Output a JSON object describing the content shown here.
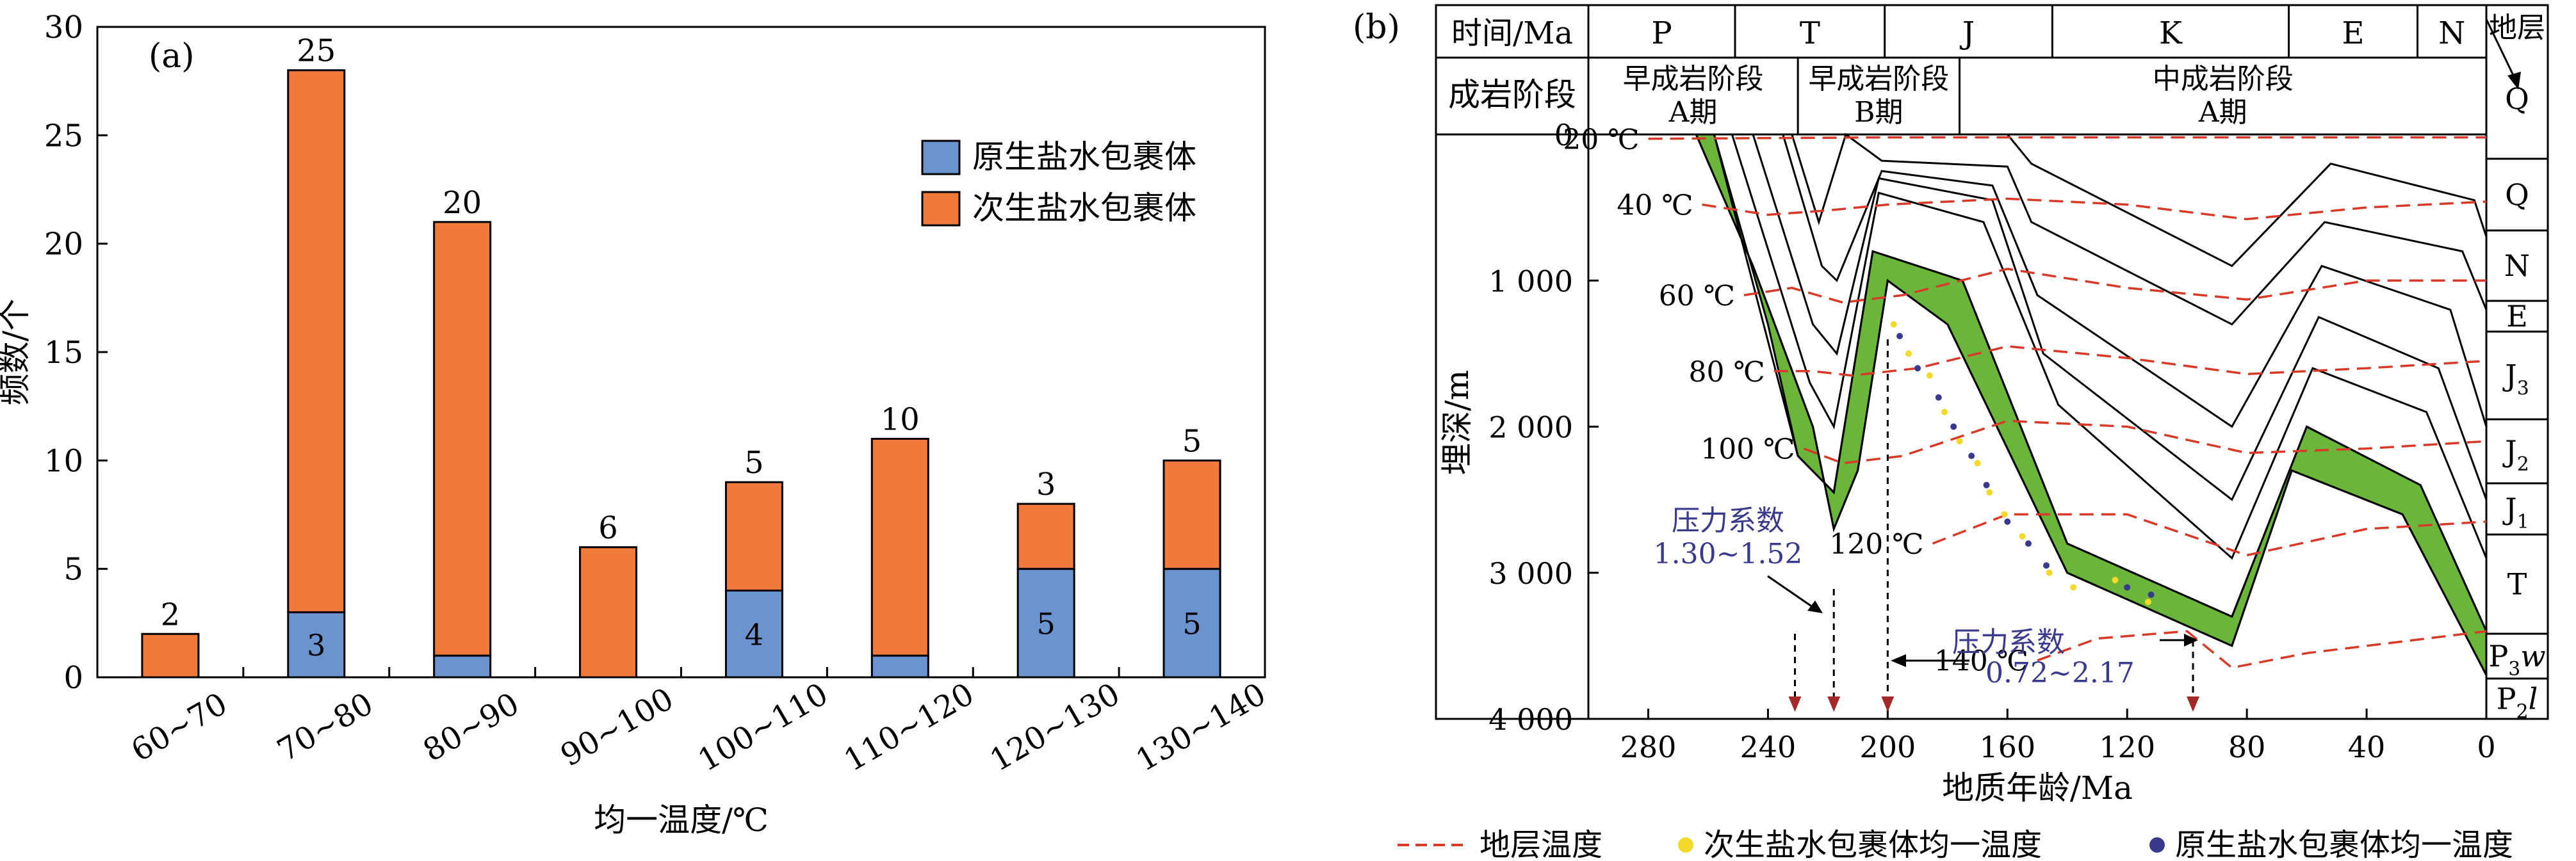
{
  "chart_data": [
    {
      "panel": "(a)",
      "type": "bar",
      "stacked": true,
      "categories": [
        "60~70",
        "70~80",
        "80~90",
        "90~100",
        "100~110",
        "110~120",
        "120~130",
        "130~140"
      ],
      "series": [
        {
          "name": "原生盐水包裹体",
          "color": "#6b93cf",
          "values": [
            0,
            3,
            1,
            0,
            4,
            1,
            5,
            5
          ]
        },
        {
          "name": "次生盐水包裹体",
          "color": "#ef7a3b",
          "values": [
            2,
            25,
            20,
            6,
            5,
            10,
            3,
            5
          ]
        }
      ],
      "segment_labels": [
        {
          "category_index": 1,
          "series_index": 0,
          "text": "3"
        },
        {
          "category_index": 4,
          "series_index": 0,
          "text": "4"
        },
        {
          "category_index": 6,
          "series_index": 0,
          "text": "5"
        },
        {
          "category_index": 7,
          "series_index": 0,
          "text": "5"
        }
      ],
      "top_labels": [
        "2",
        "25",
        "20",
        "6",
        "5",
        "10",
        "3",
        "5"
      ],
      "xlabel": "均一温度/℃",
      "ylabel": "频数/个",
      "ylim": [
        0,
        30
      ],
      "yticks": [
        0,
        5,
        10,
        15,
        20,
        25,
        30
      ],
      "legend_position": "right"
    },
    {
      "panel": "(b)",
      "type": "line",
      "title": "",
      "xlabel": "地质年龄/Ma",
      "ylabel": "埋深/m",
      "xlim": [
        300,
        0
      ],
      "ylim": [
        0,
        4000
      ],
      "xticks": [
        280,
        240,
        200,
        160,
        120,
        80,
        40,
        0
      ],
      "yticks": [
        0,
        1000,
        2000,
        3000,
        4000
      ],
      "ytick_labels": [
        "0",
        "1 000",
        "2 000",
        "3 000",
        "4 000"
      ],
      "header": {
        "time_label": "时间/Ma",
        "periods": [
          "P",
          "T",
          "J",
          "K",
          "E",
          "N"
        ],
        "stage_label": "成岩阶段",
        "stages": [
          {
            "name": "早成岩阶段",
            "sub": "A期"
          },
          {
            "name": "早成岩阶段",
            "sub": "B期"
          },
          {
            "name": "中成岩阶段",
            "sub": "A期"
          }
        ],
        "strata_label": "地层",
        "strata": [
          "Q",
          "N",
          "E",
          "J3",
          "J2",
          "J1",
          "T",
          "P3w",
          "P2l"
        ]
      },
      "burial_curves": [
        [
          [
            264,
            0
          ],
          [
            245,
            900
          ],
          [
            225,
            2000
          ],
          [
            218,
            2700
          ],
          [
            210,
            2300
          ],
          [
            200,
            1000
          ],
          [
            180,
            1300
          ],
          [
            140,
            3000
          ],
          [
            85,
            3500
          ],
          [
            65,
            2300
          ],
          [
            28,
            2600
          ],
          [
            0,
            3700
          ]
        ],
        [
          [
            258,
            0
          ],
          [
            230,
            2200
          ],
          [
            218,
            2450
          ],
          [
            205,
            800
          ],
          [
            175,
            1000
          ],
          [
            140,
            2800
          ],
          [
            85,
            3300
          ],
          [
            60,
            2000
          ],
          [
            22,
            2400
          ],
          [
            0,
            3400
          ]
        ],
        [
          [
            252,
            0
          ],
          [
            226,
            1700
          ],
          [
            218,
            2000
          ],
          [
            203,
            400
          ],
          [
            168,
            600
          ],
          [
            143,
            1850
          ],
          [
            85,
            2900
          ],
          [
            58,
            1600
          ],
          [
            20,
            1900
          ],
          [
            0,
            2900
          ]
        ],
        [
          [
            245,
            0
          ],
          [
            225,
            1300
          ],
          [
            217,
            1500
          ],
          [
            203,
            300
          ],
          [
            165,
            450
          ],
          [
            148,
            1500
          ],
          [
            85,
            2500
          ],
          [
            56,
            1250
          ],
          [
            16,
            1600
          ],
          [
            0,
            2500
          ]
        ],
        [
          [
            235,
            0
          ],
          [
            222,
            900
          ],
          [
            217,
            1000
          ],
          [
            202,
            250
          ],
          [
            165,
            350
          ],
          [
            150,
            1100
          ],
          [
            85,
            2000
          ],
          [
            55,
            900
          ],
          [
            12,
            1200
          ],
          [
            0,
            2000
          ]
        ],
        [
          [
            232,
            0
          ],
          [
            223,
            600
          ],
          [
            214,
            0
          ],
          [
            202,
            180
          ],
          [
            160,
            220
          ],
          [
            152,
            600
          ],
          [
            85,
            1300
          ],
          [
            54,
            600
          ],
          [
            8,
            800
          ],
          [
            0,
            1200
          ]
        ],
        [
          [
            202,
            0
          ],
          [
            160,
            0
          ],
          [
            152,
            200
          ],
          [
            85,
            900
          ],
          [
            52,
            200
          ],
          [
            4,
            450
          ],
          [
            0,
            700
          ]
        ]
      ],
      "green_band_upper": [
        [
          264,
          0
        ],
        [
          245,
          900
        ],
        [
          225,
          2000
        ],
        [
          218,
          2700
        ],
        [
          210,
          2300
        ],
        [
          200,
          1000
        ],
        [
          180,
          1300
        ],
        [
          140,
          3000
        ],
        [
          85,
          3500
        ],
        [
          65,
          2300
        ],
        [
          28,
          2600
        ],
        [
          0,
          3700
        ]
      ],
      "green_band_lower": [
        [
          258,
          0
        ],
        [
          240,
          1300
        ],
        [
          230,
          2200
        ],
        [
          218,
          2450
        ],
        [
          205,
          800
        ],
        [
          175,
          1000
        ],
        [
          140,
          2800
        ],
        [
          85,
          3300
        ],
        [
          60,
          2000
        ],
        [
          22,
          2400
        ],
        [
          0,
          3400
        ]
      ],
      "isotherms": [
        {
          "label": "20 ℃",
          "points": [
            [
              280,
              30
            ],
            [
              200,
              20
            ],
            [
              100,
              20
            ],
            [
              0,
              20
            ]
          ]
        },
        {
          "label": "40 ℃",
          "points": [
            [
              262,
              480
            ],
            [
              240,
              550
            ],
            [
              220,
              520
            ],
            [
              200,
              480
            ],
            [
              160,
              440
            ],
            [
              120,
              480
            ],
            [
              80,
              580
            ],
            [
              40,
              500
            ],
            [
              0,
              460
            ]
          ]
        },
        {
          "label": "60 ℃",
          "points": [
            [
              248,
              1100
            ],
            [
              232,
              1050
            ],
            [
              215,
              1150
            ],
            [
              195,
              1100
            ],
            [
              160,
              920
            ],
            [
              120,
              1050
            ],
            [
              80,
              1130
            ],
            [
              40,
              1000
            ],
            [
              0,
              1000
            ]
          ]
        },
        {
          "label": "80 ℃",
          "points": [
            [
              238,
              1620
            ],
            [
              225,
              1620
            ],
            [
              212,
              1650
            ],
            [
              190,
              1600
            ],
            [
              160,
              1450
            ],
            [
              120,
              1530
            ],
            [
              80,
              1640
            ],
            [
              40,
              1600
            ],
            [
              0,
              1550
            ]
          ]
        },
        {
          "label": "100 ℃",
          "points": [
            [
              228,
              2150
            ],
            [
              215,
              2250
            ],
            [
              195,
              2200
            ],
            [
              160,
              1960
            ],
            [
              120,
              2000
            ],
            [
              80,
              2180
            ],
            [
              40,
              2150
            ],
            [
              0,
              2100
            ]
          ]
        },
        {
          "label": "120 ℃",
          "points": [
            [
              185,
              2800
            ],
            [
              160,
              2600
            ],
            [
              120,
              2600
            ],
            [
              80,
              2880
            ],
            [
              40,
              2700
            ],
            [
              0,
              2650
            ]
          ]
        },
        {
          "label": "140 ℃",
          "points": [
            [
              150,
              3600
            ],
            [
              130,
              3450
            ],
            [
              100,
              3400
            ],
            [
              85,
              3650
            ],
            [
              60,
              3550
            ],
            [
              20,
              3450
            ],
            [
              0,
              3400
            ]
          ]
        }
      ],
      "arrows_down_ages": [
        231,
        218,
        200,
        98
      ],
      "annotations": [
        {
          "text": "压力系数",
          "text2": "1.30~1.52"
        },
        {
          "text": "压力系数",
          "text2": "0.72~2.17"
        }
      ],
      "legend": [
        {
          "name": "地层温度",
          "style": "dashed",
          "color": "#d83a2a"
        },
        {
          "name": "次生盐水包裹体均一温度",
          "style": "dot",
          "color": "#f2d92a"
        },
        {
          "name": "原生盐水包裹体均一温度",
          "style": "dot",
          "color": "#3a3a8c"
        }
      ],
      "green_color": "#6ab63a"
    }
  ]
}
